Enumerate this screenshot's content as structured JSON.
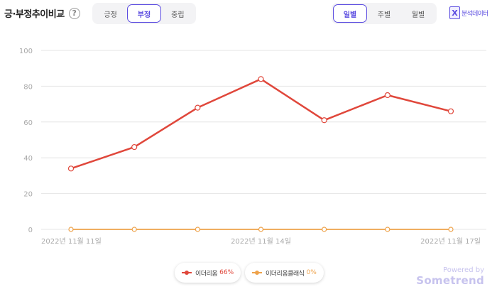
{
  "header": {
    "title": "긍·부정추이비교",
    "help_icon": "question-mark-icon",
    "sentiment_tabs": [
      {
        "label": "긍정",
        "active": false
      },
      {
        "label": "부정",
        "active": true
      },
      {
        "label": "중립",
        "active": false
      }
    ],
    "period_tabs": [
      {
        "label": "일별",
        "active": true
      },
      {
        "label": "주별",
        "active": false
      },
      {
        "label": "월별",
        "active": false
      }
    ],
    "analysis_link": {
      "icon": "excel-x-icon",
      "label": "분석데이터"
    }
  },
  "colors": {
    "accent": "#5b4ce0",
    "series1": "#e0473b",
    "series2": "#eea24a",
    "grid": "#e4e4e4",
    "axis_text": "#aaaaaa"
  },
  "chart_data": {
    "type": "line",
    "title": "",
    "xlabel": "",
    "ylabel": "",
    "ylim": [
      0,
      100
    ],
    "yticks": [
      0,
      20,
      40,
      60,
      80,
      100
    ],
    "x": [
      "2022-11-11",
      "2022-11-12",
      "2022-11-13",
      "2022-11-14",
      "2022-11-15",
      "2022-11-16",
      "2022-11-17"
    ],
    "x_tick_labels": [
      {
        "index": 0,
        "label": "2022년 11월 11일"
      },
      {
        "index": 3,
        "label": "2022년 11월 14일"
      },
      {
        "index": 6,
        "label": "2022년 11월 17일"
      }
    ],
    "series": [
      {
        "name": "이더리움",
        "color": "#e0473b",
        "values": [
          34,
          46,
          68,
          84,
          61,
          75,
          66
        ]
      },
      {
        "name": "이더리움클래식",
        "color": "#eea24a",
        "values": [
          0,
          0,
          0,
          0,
          0,
          0,
          0
        ]
      }
    ],
    "grid": true,
    "legend_position": "bottom-center"
  },
  "legend": [
    {
      "name": "이더리움",
      "percent": "66%",
      "color": "#e0473b"
    },
    {
      "name": "이더리움클래식",
      "percent": "0%",
      "color": "#eea24a"
    }
  ],
  "branding": {
    "powered_by": "Powered by",
    "brand": "Sometrend"
  }
}
